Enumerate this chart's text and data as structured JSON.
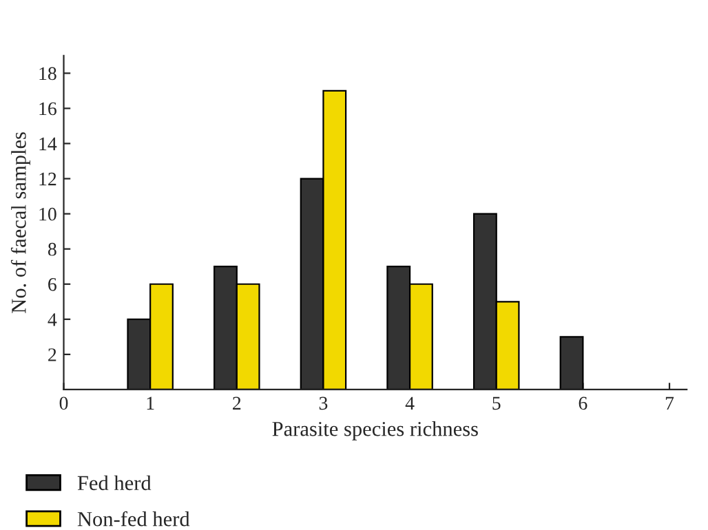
{
  "chart_data": {
    "type": "bar",
    "xlabel": "Parasite species richness",
    "ylabel": "No. of faecal samples",
    "x": [
      1,
      2,
      3,
      4,
      5,
      6
    ],
    "series": [
      {
        "name": "Fed herd",
        "color": "#333333",
        "values": [
          4,
          7,
          12,
          7,
          10,
          3
        ]
      },
      {
        "name": "Non-fed herd",
        "color": "#f2d900",
        "values": [
          6,
          6,
          17,
          6,
          5,
          null
        ]
      }
    ],
    "xlim": [
      0,
      7.2
    ],
    "xticks": [
      0,
      1,
      2,
      3,
      4,
      5,
      6,
      7
    ],
    "ylim": [
      0,
      19
    ],
    "yticks": [
      2,
      4,
      6,
      8,
      10,
      12,
      14,
      16,
      18
    ],
    "grid": false,
    "legend": "bottom left"
  }
}
